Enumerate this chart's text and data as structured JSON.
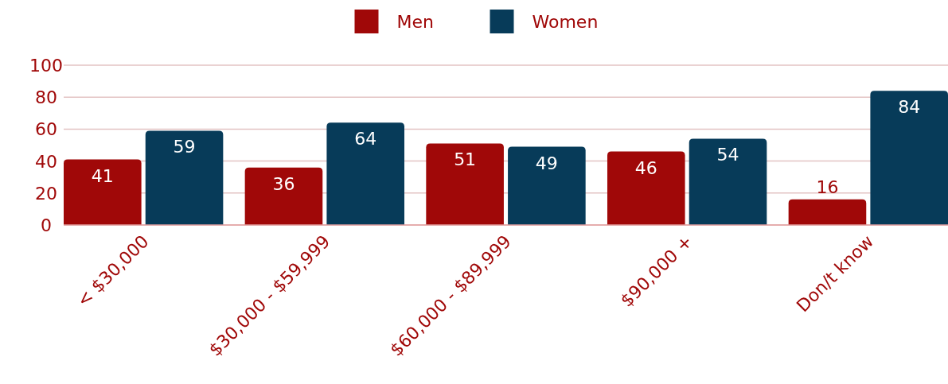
{
  "chart_data": {
    "type": "bar",
    "categories": [
      "< $30,000",
      "$30,000 - $59,999",
      "$60,000 - $89,999",
      "$90,000 +",
      "Don/t know"
    ],
    "series": [
      {
        "name": "Men",
        "color": "#a00808",
        "values": [
          41,
          36,
          51,
          46,
          16
        ]
      },
      {
        "name": "Women",
        "color": "#073b59",
        "values": [
          59,
          64,
          49,
          54,
          84
        ]
      }
    ],
    "ylim": [
      0,
      100
    ],
    "yticks": [
      0,
      20,
      40,
      60,
      80,
      100
    ],
    "grid": "y",
    "legend": "top",
    "data_labels": true
  }
}
